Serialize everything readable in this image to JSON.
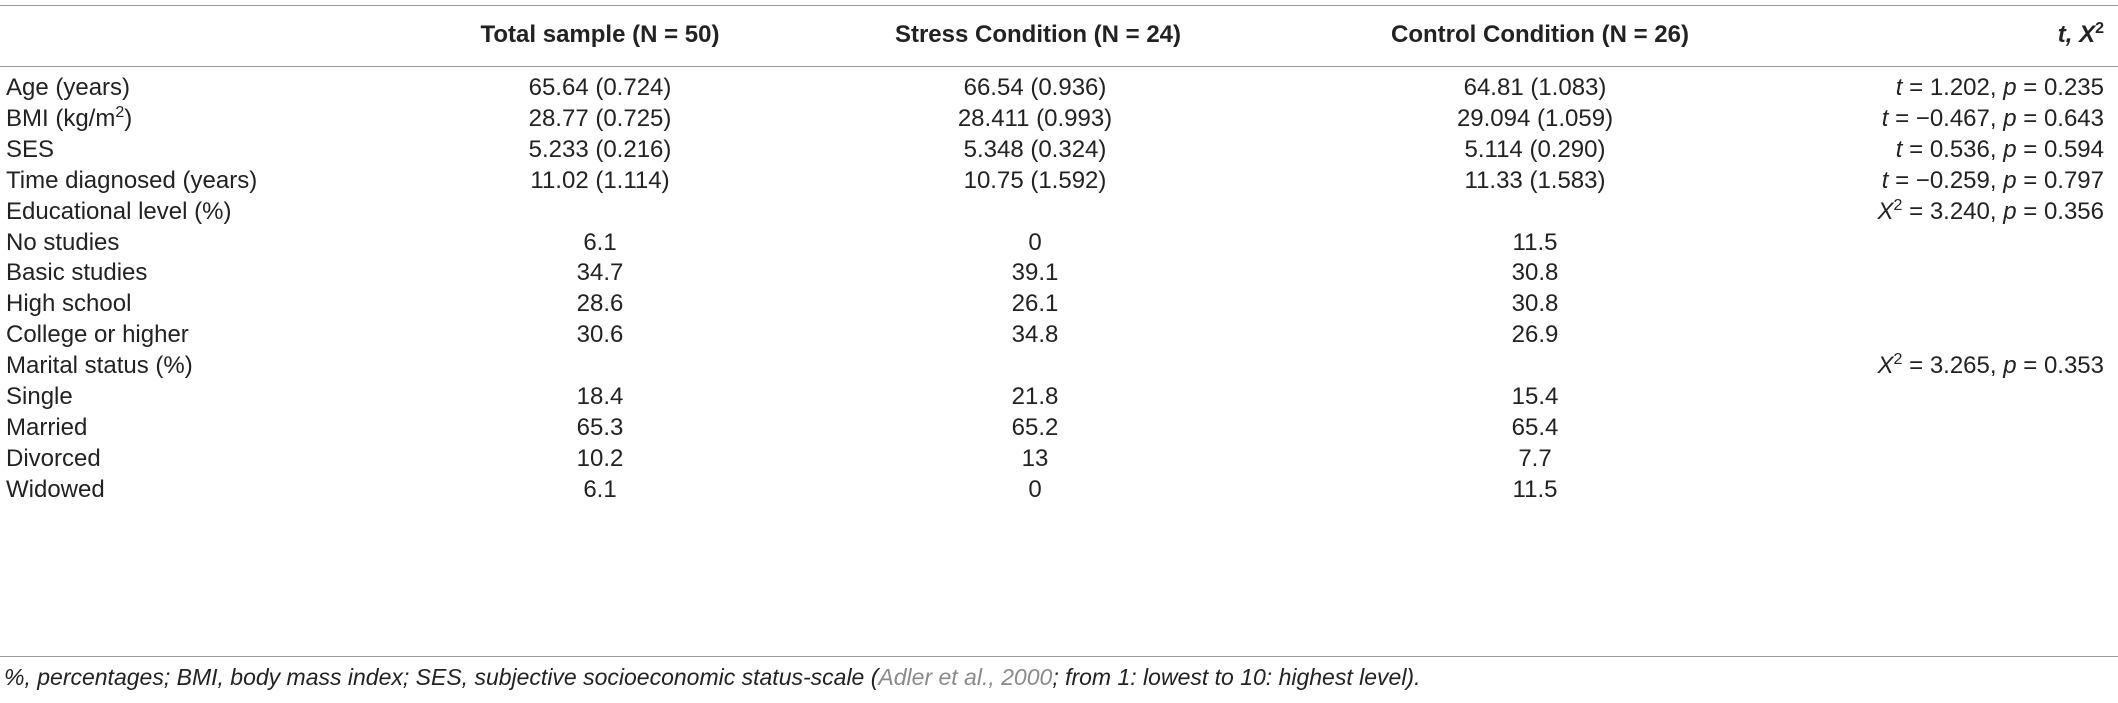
{
  "table": {
    "headers": {
      "label": "",
      "total": "Total sample (N = 50)",
      "stress": "Stress Condition (N = 24)",
      "control": "Control Condition (N = 26)",
      "stat_prefix": "t, X",
      "stat_sup": "2"
    },
    "rows": [
      {
        "label": "Age (years)",
        "total": "65.64 (0.724)",
        "stress": "66.54 (0.936)",
        "control": "64.81 (1.083)",
        "stat_var": "t",
        "stat_sup": "",
        "stat_val": "1.202",
        "p_val": "0.235"
      },
      {
        "label_main": "BMI (kg/m",
        "label_sup": "2",
        "label_end": ")",
        "total": "28.77 (0.725)",
        "stress": "28.411 (0.993)",
        "control": "29.094 (1.059)",
        "stat_var": "t",
        "stat_sup": "",
        "stat_val": "−0.467",
        "p_val": "0.643"
      },
      {
        "label": "SES",
        "total": "5.233 (0.216)",
        "stress": "5.348 (0.324)",
        "control": "5.114 (0.290)",
        "stat_var": "t",
        "stat_sup": "",
        "stat_val": "0.536",
        "p_val": "0.594"
      },
      {
        "label": "Time diagnosed (years)",
        "total": "11.02 (1.114)",
        "stress": "10.75 (1.592)",
        "control": "11.33 (1.583)",
        "stat_var": "t",
        "stat_sup": "",
        "stat_val": "−0.259",
        "p_val": "0.797"
      },
      {
        "label": "Educational level (%)",
        "total": "",
        "stress": "",
        "control": "",
        "stat_var": "X",
        "stat_sup": "2",
        "stat_val": "3.240",
        "p_val": "0.356"
      },
      {
        "label": "No studies",
        "total": "6.1",
        "stress": "0",
        "control": "11.5"
      },
      {
        "label": "Basic studies",
        "total": "34.7",
        "stress": "39.1",
        "control": "30.8"
      },
      {
        "label": "High school",
        "total": "28.6",
        "stress": "26.1",
        "control": "30.8"
      },
      {
        "label": "College or higher",
        "total": "30.6",
        "stress": "34.8",
        "control": "26.9"
      },
      {
        "label": "Marital status (%)",
        "total": "",
        "stress": "",
        "control": "",
        "stat_var": "X",
        "stat_sup": "2",
        "stat_val": "3.265",
        "p_val": "0.353"
      },
      {
        "label": "Single",
        "total": "18.4",
        "stress": "21.8",
        "control": "15.4"
      },
      {
        "label": "Married",
        "total": "65.3",
        "stress": "65.2",
        "control": "65.4"
      },
      {
        "label": "Divorced",
        "total": "10.2",
        "stress": "13",
        "control": "7.7"
      },
      {
        "label": "Widowed",
        "total": "6.1",
        "stress": "0",
        "control": "11.5"
      }
    ]
  },
  "footnote": {
    "before": "%, percentages; BMI, body mass index; SES, subjective socioeconomic status-scale (",
    "cite": "Adler et al., 2000",
    "after": "; from 1: lowest to 10: highest level)."
  },
  "colors": {
    "rule": "#9a9a9a",
    "text": "#222222",
    "citation": "#8a8a8a"
  }
}
